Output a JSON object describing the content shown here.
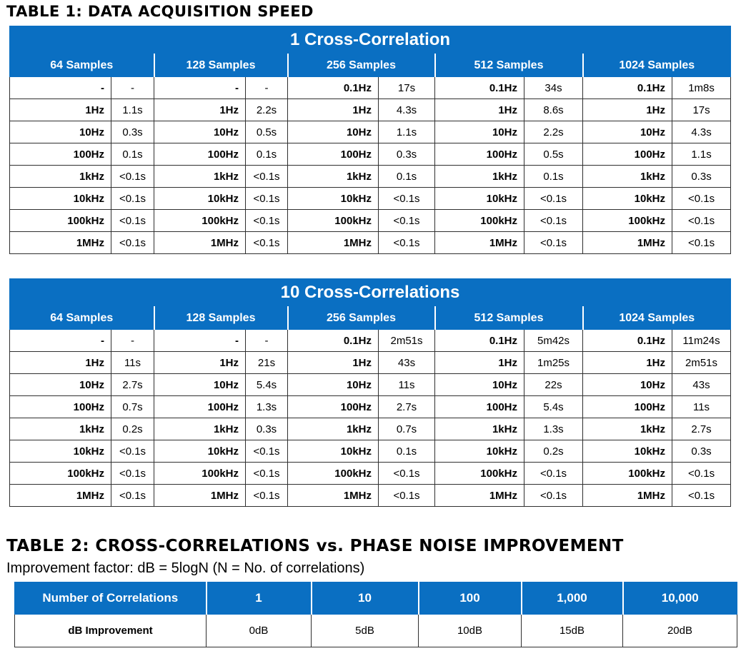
{
  "table1": {
    "heading": "TABLE 1: DATA ACQUISITION SPEED",
    "sample_headers": [
      "64 Samples",
      "128 Samples",
      "256 Samples",
      "512 Samples",
      "1024 Samples"
    ],
    "sections": [
      {
        "title": "1 Cross-Correlation",
        "rows": [
          [
            "-",
            "-",
            "-",
            "-",
            "0.1Hz",
            "17s",
            "0.1Hz",
            "34s",
            "0.1Hz",
            "1m8s"
          ],
          [
            "1Hz",
            "1.1s",
            "1Hz",
            "2.2s",
            "1Hz",
            "4.3s",
            "1Hz",
            "8.6s",
            "1Hz",
            "17s"
          ],
          [
            "10Hz",
            "0.3s",
            "10Hz",
            "0.5s",
            "10Hz",
            "1.1s",
            "10Hz",
            "2.2s",
            "10Hz",
            "4.3s"
          ],
          [
            "100Hz",
            "0.1s",
            "100Hz",
            "0.1s",
            "100Hz",
            "0.3s",
            "100Hz",
            "0.5s",
            "100Hz",
            "1.1s"
          ],
          [
            "1kHz",
            "<0.1s",
            "1kHz",
            "<0.1s",
            "1kHz",
            "0.1s",
            "1kHz",
            "0.1s",
            "1kHz",
            "0.3s"
          ],
          [
            "10kHz",
            "<0.1s",
            "10kHz",
            "<0.1s",
            "10kHz",
            "<0.1s",
            "10kHz",
            "<0.1s",
            "10kHz",
            "<0.1s"
          ],
          [
            "100kHz",
            "<0.1s",
            "100kHz",
            "<0.1s",
            "100kHz",
            "<0.1s",
            "100kHz",
            "<0.1s",
            "100kHz",
            "<0.1s"
          ],
          [
            "1MHz",
            "<0.1s",
            "1MHz",
            "<0.1s",
            "1MHz",
            "<0.1s",
            "1MHz",
            "<0.1s",
            "1MHz",
            "<0.1s"
          ]
        ]
      },
      {
        "title": "10 Cross-Correlations",
        "rows": [
          [
            "-",
            "-",
            "-",
            "-",
            "0.1Hz",
            "2m51s",
            "0.1Hz",
            "5m42s",
            "0.1Hz",
            "11m24s"
          ],
          [
            "1Hz",
            "11s",
            "1Hz",
            "21s",
            "1Hz",
            "43s",
            "1Hz",
            "1m25s",
            "1Hz",
            "2m51s"
          ],
          [
            "10Hz",
            "2.7s",
            "10Hz",
            "5.4s",
            "10Hz",
            "11s",
            "10Hz",
            "22s",
            "10Hz",
            "43s"
          ],
          [
            "100Hz",
            "0.7s",
            "100Hz",
            "1.3s",
            "100Hz",
            "2.7s",
            "100Hz",
            "5.4s",
            "100Hz",
            "11s"
          ],
          [
            "1kHz",
            "0.2s",
            "1kHz",
            "0.3s",
            "1kHz",
            "0.7s",
            "1kHz",
            "1.3s",
            "1kHz",
            "2.7s"
          ],
          [
            "10kHz",
            "<0.1s",
            "10kHz",
            "<0.1s",
            "10kHz",
            "0.1s",
            "10kHz",
            "0.2s",
            "10kHz",
            "0.3s"
          ],
          [
            "100kHz",
            "<0.1s",
            "100kHz",
            "<0.1s",
            "100kHz",
            "<0.1s",
            "100kHz",
            "<0.1s",
            "100kHz",
            "<0.1s"
          ],
          [
            "1MHz",
            "<0.1s",
            "1MHz",
            "<0.1s",
            "1MHz",
            "<0.1s",
            "1MHz",
            "<0.1s",
            "1MHz",
            "<0.1s"
          ]
        ]
      }
    ]
  },
  "table2": {
    "heading": "TABLE 2:  CROSS-CORRELATIONS vs. PHASE NOISE IMPROVEMENT",
    "formula": "Improvement factor:  dB = 5logN (N = No. of correlations)",
    "header_label": "Number of Correlations",
    "correlations": [
      "1",
      "10",
      "100",
      "1,000",
      "10,000"
    ],
    "row_label": "dB Improvement",
    "improvements": [
      "0dB",
      "5dB",
      "10dB",
      "15dB",
      "20dB"
    ]
  },
  "colors": {
    "header_blue": "#0a6fc2",
    "header_text": "#ffffff",
    "grid": "#2f2f2f"
  }
}
